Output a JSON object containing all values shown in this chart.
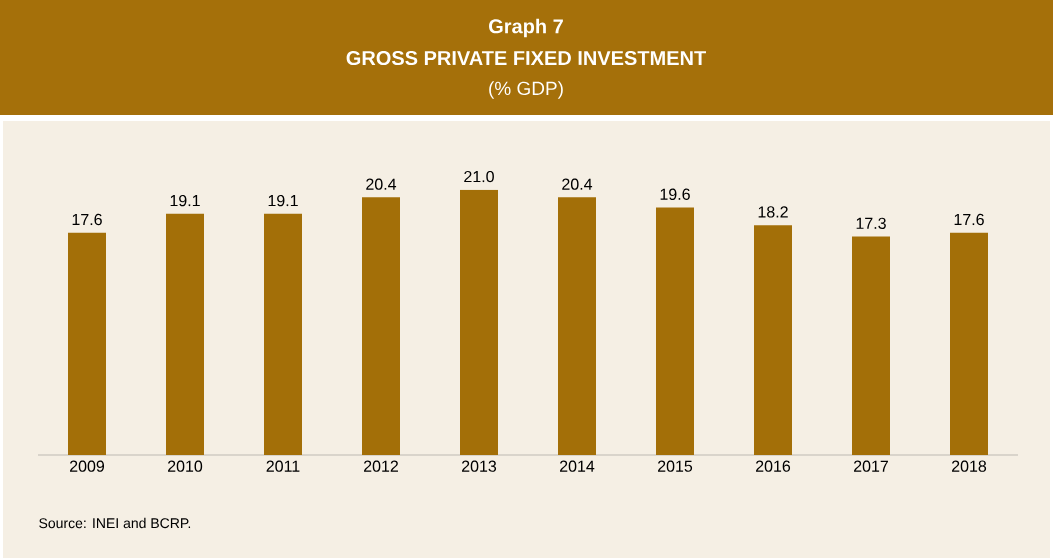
{
  "chart_data": {
    "type": "bar",
    "title": "GROSS PRIVATE FIXED INVESTMENT",
    "subtitle": "(% GDP)",
    "annotations": [
      "Graph 7",
      "Source: INEI and BCRP."
    ],
    "categories": [
      "2009",
      "2010",
      "2011",
      "2012",
      "2013",
      "2014",
      "2015",
      "2016",
      "2017",
      "2018"
    ],
    "values": [
      17.6,
      19.1,
      19.1,
      20.4,
      21.0,
      20.4,
      19.6,
      18.2,
      17.3,
      17.6
    ],
    "value_labels": [
      "17.6",
      "19.1",
      "19.1",
      "20.4",
      "21.0",
      "20.4",
      "19.6",
      "18.2",
      "17.3",
      "17.6"
    ],
    "color": "#a36f08"
  }
}
